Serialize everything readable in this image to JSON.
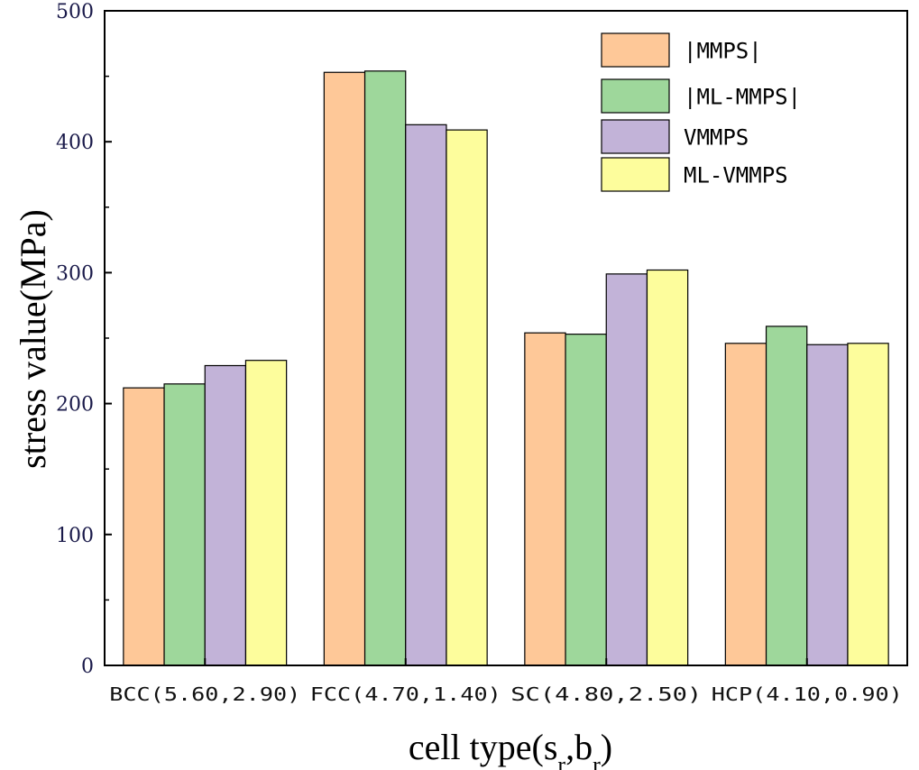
{
  "chart_data": {
    "type": "bar",
    "ylabel": "stress value(MPa)",
    "xlabel": {
      "main": "cell type(s",
      "sub1": "r",
      "mid": ",b",
      "sub2": "r",
      "end": ")"
    },
    "ylim": [
      0,
      500
    ],
    "yticks": [
      0,
      100,
      200,
      300,
      400,
      500
    ],
    "categories": [
      "BCC(5.60,2.90)",
      "FCC(4.70,1.40)",
      "SC(4.80,2.50)",
      "HCP(4.10,0.90)"
    ],
    "series": [
      {
        "name": "|MMPS|",
        "color": "#FEC898",
        "values": [
          212,
          453,
          254,
          246
        ]
      },
      {
        "name": "|ML-MMPS|",
        "color": "#9ED79B",
        "values": [
          215,
          454,
          253,
          259
        ]
      },
      {
        "name": "VMMPS",
        "color": "#C2B3D8",
        "values": [
          229,
          413,
          299,
          245
        ]
      },
      {
        "name": "ML-VMMPS",
        "color": "#FDFD9C",
        "values": [
          233,
          409,
          302,
          246
        ]
      }
    ],
    "legend_position": "top-right",
    "grid": false
  }
}
